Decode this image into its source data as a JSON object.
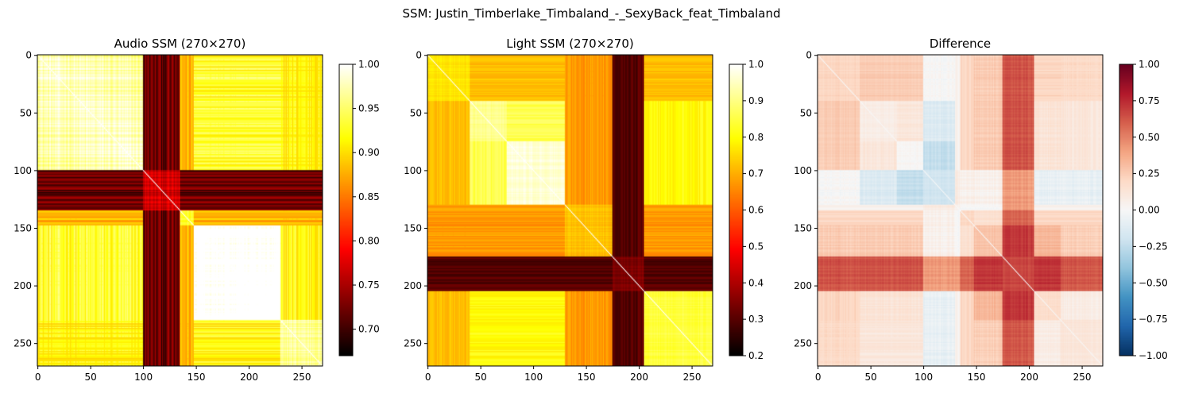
{
  "figure": {
    "suptitle": "SSM: Justin_Timberlake_Timbaland_-_SexyBack_feat_Timbaland"
  },
  "chart_data": [
    {
      "type": "heatmap",
      "id": "audio",
      "title": "Audio SSM (270×270)",
      "matrix_size": 270,
      "x_ticks": [
        0,
        50,
        100,
        150,
        200,
        250
      ],
      "y_ticks": [
        0,
        50,
        100,
        150,
        200,
        250
      ],
      "colormap": "hot",
      "vmin": 0.67,
      "vmax": 1.0,
      "colorbar_ticks": [
        0.7,
        0.75,
        0.8,
        0.85,
        0.9,
        0.95,
        1.0
      ],
      "colorbar_tick_labels": [
        "0.70",
        "0.75",
        "0.80",
        "0.85",
        "0.90",
        "0.95",
        "1.00"
      ],
      "bands": [
        {
          "start": 0,
          "end": 100,
          "level": 0.93
        },
        {
          "start": 100,
          "end": 135,
          "level": 0.72
        },
        {
          "start": 135,
          "end": 148,
          "level": 0.88
        },
        {
          "start": 148,
          "end": 230,
          "level": 0.97
        },
        {
          "start": 230,
          "end": 270,
          "level": 0.92
        }
      ]
    },
    {
      "type": "heatmap",
      "id": "light",
      "title": "Light SSM (270×270)",
      "matrix_size": 270,
      "x_ticks": [
        0,
        50,
        100,
        150,
        200,
        250
      ],
      "y_ticks": [
        0,
        50,
        100,
        150,
        200,
        250
      ],
      "colormap": "hot",
      "vmin": 0.2,
      "vmax": 1.0,
      "colorbar_ticks": [
        0.2,
        0.3,
        0.4,
        0.5,
        0.6,
        0.7,
        0.8,
        0.9,
        1.0
      ],
      "colorbar_tick_labels": [
        "0.2",
        "0.3",
        "0.4",
        "0.5",
        "0.6",
        "0.7",
        "0.8",
        "0.9",
        "1.0"
      ],
      "bands": [
        {
          "start": 0,
          "end": 40,
          "level": 0.72
        },
        {
          "start": 40,
          "end": 75,
          "level": 0.86
        },
        {
          "start": 75,
          "end": 130,
          "level": 0.92
        },
        {
          "start": 130,
          "end": 175,
          "level": 0.68
        },
        {
          "start": 175,
          "end": 205,
          "level": 0.3
        },
        {
          "start": 205,
          "end": 270,
          "level": 0.8
        }
      ]
    },
    {
      "type": "heatmap",
      "id": "difference",
      "title": "Difference",
      "matrix_size": 270,
      "x_ticks": [
        0,
        50,
        100,
        150,
        200,
        250
      ],
      "y_ticks": [
        0,
        50,
        100,
        150,
        200,
        250
      ],
      "colormap": "RdBu_r",
      "vmin": -1.0,
      "vmax": 1.0,
      "colorbar_ticks": [
        -1.0,
        -0.75,
        -0.5,
        -0.25,
        0.0,
        0.25,
        0.5,
        0.75,
        1.0
      ],
      "colorbar_tick_labels": [
        "−1.00",
        "−0.75",
        "−0.50",
        "−0.25",
        "0.00",
        "0.25",
        "0.50",
        "0.75",
        "1.00"
      ],
      "derived_from": [
        "audio",
        "light"
      ]
    }
  ]
}
